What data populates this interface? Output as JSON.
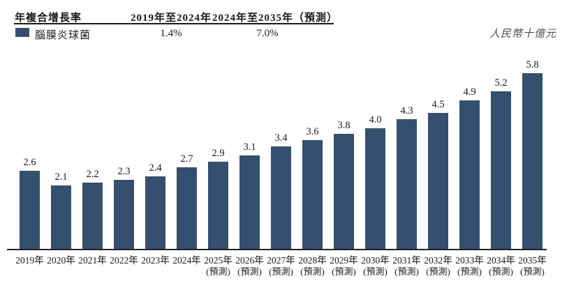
{
  "header": {
    "row_label": "年複合增長率",
    "col1": "2019年至2024年",
    "col2": "2024年至2035年（預測）"
  },
  "legend": {
    "series": "腦膜炎球菌",
    "cagr_2019_2024": "1.4%",
    "cagr_2024_2035": "7.0%"
  },
  "unit_label": "人民幣十億元",
  "chart_data": {
    "type": "bar",
    "series_name": "腦膜炎球菌",
    "categories": [
      "2019年",
      "2020年",
      "2021年",
      "2022年",
      "2023年",
      "2024年",
      "2025年",
      "2026年",
      "2027年",
      "2028年",
      "2029年",
      "2030年",
      "2031年",
      "2032年",
      "2033年",
      "2034年",
      "2035年"
    ],
    "forecast_label": "(預測)",
    "forecast_start_index": 6,
    "values": [
      2.6,
      2.1,
      2.2,
      2.3,
      2.4,
      2.7,
      2.9,
      3.1,
      3.4,
      3.6,
      3.8,
      4.0,
      4.3,
      4.5,
      4.9,
      5.2,
      5.8
    ],
    "value_decimals": 1,
    "title": "",
    "xlabel": "",
    "ylabel": "人民幣十億元",
    "ylim": [
      0,
      6
    ],
    "grid": false,
    "legend_position": "top-left",
    "bar_color": "#35506e",
    "cagr_table": {
      "2019-2024": "1.4%",
      "2024-2035_forecast": "7.0%"
    }
  }
}
